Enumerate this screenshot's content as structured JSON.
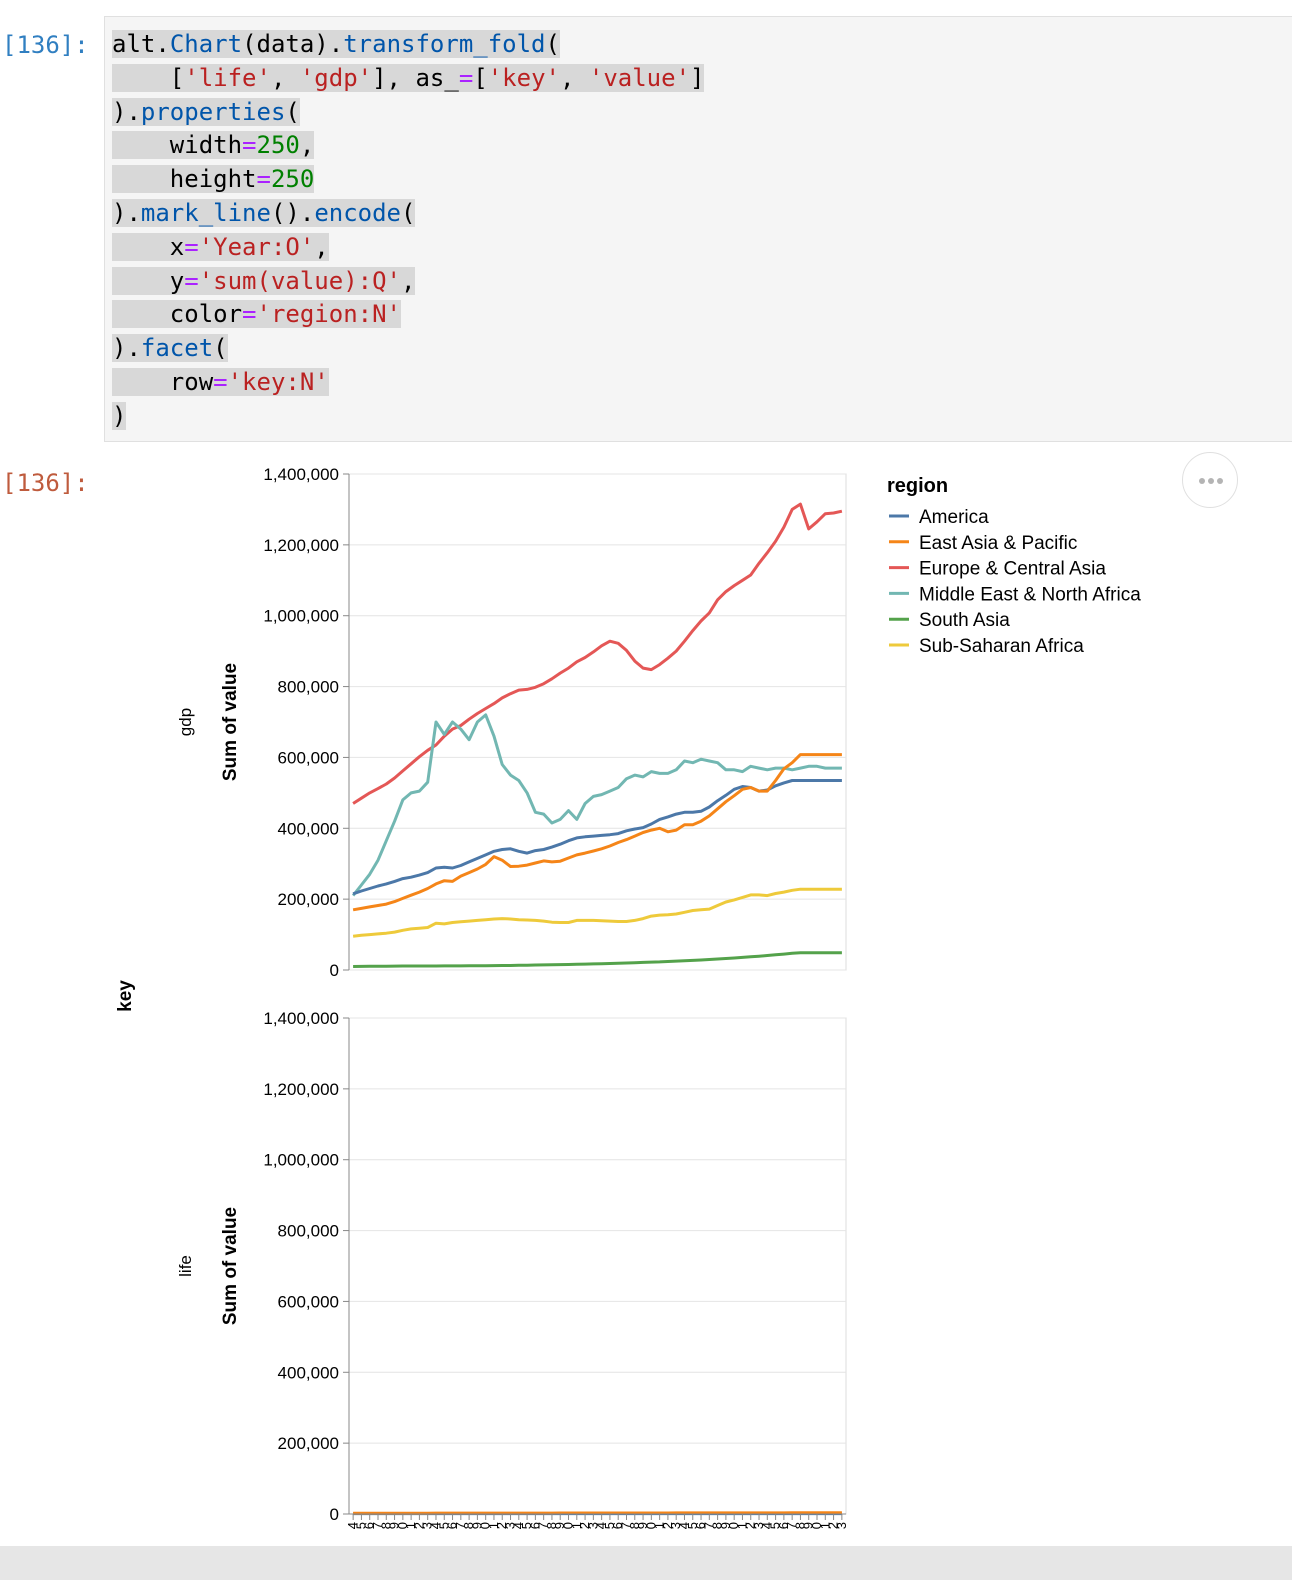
{
  "notebook": {
    "input_prompt": "[136]:",
    "output_prompt": "[136]:",
    "code_lines": [
      [
        {
          "t": "alt",
          "c": "k-obj"
        },
        {
          "t": ".",
          "c": "k-obj"
        },
        {
          "t": "Chart",
          "c": "k-attr"
        },
        {
          "t": "(data).",
          "c": "k-obj"
        },
        {
          "t": "transform_fold",
          "c": "k-attr"
        },
        {
          "t": "(",
          "c": "k-obj"
        }
      ],
      [
        {
          "t": "    [",
          "c": "k-obj"
        },
        {
          "t": "'life'",
          "c": "k-str"
        },
        {
          "t": ", ",
          "c": "k-obj"
        },
        {
          "t": "'gdp'",
          "c": "k-str"
        },
        {
          "t": "], as_",
          "c": "k-obj"
        },
        {
          "t": "=",
          "c": "k-op"
        },
        {
          "t": "[",
          "c": "k-obj"
        },
        {
          "t": "'key'",
          "c": "k-str"
        },
        {
          "t": ", ",
          "c": "k-obj"
        },
        {
          "t": "'value'",
          "c": "k-str"
        },
        {
          "t": "]",
          "c": "k-obj"
        }
      ],
      [
        {
          "t": ").",
          "c": "k-obj"
        },
        {
          "t": "properties",
          "c": "k-attr"
        },
        {
          "t": "(",
          "c": "k-obj"
        }
      ],
      [
        {
          "t": "    width",
          "c": "k-obj"
        },
        {
          "t": "=",
          "c": "k-op"
        },
        {
          "t": "250",
          "c": "k-num"
        },
        {
          "t": ",",
          "c": "k-obj"
        }
      ],
      [
        {
          "t": "    height",
          "c": "k-obj"
        },
        {
          "t": "=",
          "c": "k-op"
        },
        {
          "t": "250",
          "c": "k-num"
        }
      ],
      [
        {
          "t": ").",
          "c": "k-obj"
        },
        {
          "t": "mark_line",
          "c": "k-attr"
        },
        {
          "t": "().",
          "c": "k-obj"
        },
        {
          "t": "encode",
          "c": "k-attr"
        },
        {
          "t": "(",
          "c": "k-obj"
        }
      ],
      [
        {
          "t": "    x",
          "c": "k-obj"
        },
        {
          "t": "=",
          "c": "k-op"
        },
        {
          "t": "'Year:O'",
          "c": "k-str"
        },
        {
          "t": ",",
          "c": "k-obj"
        }
      ],
      [
        {
          "t": "    y",
          "c": "k-obj"
        },
        {
          "t": "=",
          "c": "k-op"
        },
        {
          "t": "'sum(value):Q'",
          "c": "k-str"
        },
        {
          "t": ",",
          "c": "k-obj"
        }
      ],
      [
        {
          "t": "    color",
          "c": "k-obj"
        },
        {
          "t": "=",
          "c": "k-op"
        },
        {
          "t": "'region:N'",
          "c": "k-str"
        }
      ],
      [
        {
          "t": ").",
          "c": "k-obj"
        },
        {
          "t": "facet",
          "c": "k-attr"
        },
        {
          "t": "(",
          "c": "k-obj"
        }
      ],
      [
        {
          "t": "    row",
          "c": "k-obj"
        },
        {
          "t": "=",
          "c": "k-op"
        },
        {
          "t": "'key:N'",
          "c": "k-str"
        }
      ],
      [
        {
          "t": ")",
          "c": "k-obj"
        }
      ]
    ]
  },
  "chart_data": {
    "type": "line",
    "facet_field": "key",
    "x_field": "Year",
    "ylabel": "Sum of value",
    "ylim": [
      0,
      1400000
    ],
    "y_ticks": [
      0,
      200000,
      400000,
      600000,
      800000,
      1000000,
      1200000,
      1400000
    ],
    "y_tick_labels": [
      "0",
      "200,000",
      "400,000",
      "600,000",
      "800,000",
      "1,000,000",
      "1,200,000",
      "1,400,000"
    ],
    "x_tick_labels": [
      "4",
      "5",
      "6",
      "7",
      "8",
      "9",
      "0",
      "1",
      "2",
      "3",
      "4",
      "5",
      "6",
      "7",
      "8",
      "9",
      "0",
      "1",
      "2",
      "3",
      "4",
      "5",
      "6",
      "7",
      "8",
      "9",
      "0",
      "1",
      "2",
      "3",
      "4",
      "5",
      "6",
      "7",
      "8",
      "9",
      "0",
      "1",
      "2",
      "3",
      "4",
      "5",
      "6",
      "7",
      "8",
      "9",
      "0",
      "1",
      "2",
      "3",
      "4",
      "5",
      "6",
      "7",
      "8",
      "9",
      "0",
      "1",
      "2",
      "3"
    ],
    "legend": {
      "title": "region",
      "position": "right"
    },
    "colors": {
      "America": "#4c78a8",
      "East Asia & Pacific": "#f58518",
      "Europe & Central Asia": "#e45756",
      "Middle East & North Africa": "#72b7b2",
      "South Asia": "#54a24b",
      "Sub-Saharan Africa": "#eeca3b"
    },
    "facets": [
      {
        "key": "gdp",
        "series": [
          {
            "name": "Europe & Central Asia",
            "values": [
              470000,
              485000,
              500000,
              512000,
              525000,
              542000,
              562000,
              582000,
              602000,
              620000,
              635000,
              660000,
              680000,
              690000,
              708000,
              724000,
              738000,
              752000,
              768000,
              780000,
              790000,
              792000,
              798000,
              808000,
              822000,
              838000,
              852000,
              870000,
              882000,
              898000,
              915000,
              928000,
              922000,
              902000,
              872000,
              852000,
              848000,
              862000,
              880000,
              900000,
              928000,
              958000,
              985000,
              1008000,
              1045000,
              1068000,
              1085000,
              1100000,
              1115000,
              1148000,
              1178000,
              1210000,
              1250000,
              1300000,
              1315000,
              1245000,
              1265000,
              1288000,
              1290000,
              1295000
            ]
          },
          {
            "name": "Middle East & North Africa",
            "values": [
              210000,
              240000,
              270000,
              310000,
              365000,
              420000,
              480000,
              500000,
              505000,
              530000,
              700000,
              665000,
              700000,
              680000,
              650000,
              700000,
              720000,
              660000,
              580000,
              550000,
              535000,
              500000,
              445000,
              440000,
              415000,
              425000,
              450000,
              425000,
              470000,
              490000,
              495000,
              505000,
              515000,
              540000,
              550000,
              545000,
              560000,
              555000,
              555000,
              565000,
              590000,
              585000,
              595000,
              590000,
              585000,
              565000,
              565000,
              560000,
              575000,
              570000,
              565000,
              570000,
              570000,
              565000,
              570000,
              575000,
              575000,
              570000,
              570000,
              570000
            ]
          },
          {
            "name": "America",
            "values": [
              215000,
              223000,
              230000,
              237000,
              243000,
              250000,
              258000,
              262000,
              268000,
              275000,
              288000,
              290000,
              288000,
              295000,
              305000,
              315000,
              325000,
              335000,
              340000,
              342000,
              335000,
              330000,
              337000,
              340000,
              347000,
              355000,
              365000,
              373000,
              376000,
              378000,
              380000,
              382000,
              385000,
              393000,
              398000,
              402000,
              412000,
              425000,
              432000,
              440000,
              445000,
              445000,
              448000,
              460000,
              478000,
              493000,
              510000,
              518000,
              515000,
              505000,
              508000,
              520000,
              528000,
              535000,
              535000,
              535000,
              535000,
              535000,
              535000,
              535000
            ]
          },
          {
            "name": "East Asia & Pacific",
            "values": [
              170000,
              174000,
              178000,
              182000,
              186000,
              193000,
              202000,
              211000,
              220000,
              230000,
              243000,
              252000,
              250000,
              265000,
              275000,
              285000,
              298000,
              320000,
              310000,
              292000,
              293000,
              296000,
              302000,
              308000,
              305000,
              307000,
              316000,
              325000,
              330000,
              336000,
              342000,
              350000,
              360000,
              368000,
              378000,
              388000,
              395000,
              400000,
              390000,
              395000,
              410000,
              410000,
              420000,
              435000,
              455000,
              475000,
              492000,
              510000,
              515000,
              505000,
              505000,
              535000,
              568000,
              585000,
              608000,
              608000,
              608000,
              608000,
              608000,
              608000
            ]
          },
          {
            "name": "Sub-Saharan Africa",
            "values": [
              95000,
              98000,
              100000,
              102000,
              104000,
              107000,
              112000,
              116000,
              118000,
              120000,
              132000,
              130000,
              134000,
              136000,
              138000,
              140000,
              142000,
              144000,
              145000,
              144000,
              142000,
              141000,
              140000,
              138000,
              135000,
              134000,
              134000,
              140000,
              140000,
              140000,
              139000,
              138000,
              137000,
              137000,
              140000,
              145000,
              152000,
              155000,
              156000,
              158000,
              163000,
              168000,
              170000,
              172000,
              182000,
              192000,
              198000,
              205000,
              212000,
              212000,
              210000,
              216000,
              220000,
              225000,
              228000,
              228000,
              228000,
              228000,
              228000,
              228000
            ]
          },
          {
            "name": "South Asia",
            "values": [
              10000,
              10200,
              10400,
              10600,
              10800,
              11000,
              11200,
              11200,
              11200,
              11300,
              11400,
              11500,
              11600,
              11700,
              11800,
              12000,
              12200,
              12400,
              12600,
              12800,
              13200,
              13600,
              14000,
              14400,
              14800,
              15200,
              15600,
              16000,
              16600,
              17200,
              17800,
              18400,
              19000,
              19800,
              20600,
              21400,
              22200,
              23000,
              24000,
              25000,
              26000,
              27000,
              28200,
              29600,
              31000,
              32500,
              34000,
              35600,
              37200,
              39000,
              41000,
              43000,
              45000,
              47000,
              48500,
              48500,
              48500,
              48500,
              48500,
              48500
            ]
          }
        ]
      },
      {
        "key": "life",
        "series": [
          {
            "name": "America",
            "values": [
              1100,
              1102,
              1104,
              1106,
              1108,
              1110,
              1112,
              1114,
              1116,
              1118,
              1120,
              1122,
              1124,
              1126,
              1128,
              1130,
              1132,
              1134,
              1136,
              1138,
              1140,
              1142,
              1144,
              1146,
              1148,
              1150,
              1152,
              1154,
              1156,
              1158,
              1160,
              1162,
              1164,
              1166,
              1168,
              1170,
              1172,
              1174,
              1176,
              1178,
              1180,
              1182,
              1184,
              1186,
              1188,
              1190,
              1192,
              1194,
              1196,
              1198,
              1200,
              1202,
              1204,
              1206,
              1208,
              1210,
              1212,
              1214,
              1216,
              1218
            ]
          },
          {
            "name": "East Asia & Pacific",
            "values": [
              2200,
              2220,
              2240,
              2260,
              2280,
              2300,
              2320,
              2340,
              2360,
              2380,
              2400,
              2420,
              2440,
              2460,
              2480,
              2500,
              2520,
              2540,
              2560,
              2580,
              2600,
              2620,
              2640,
              2660,
              2680,
              2700,
              2720,
              2740,
              2760,
              2780,
              2800,
              2820,
              2840,
              2860,
              2880,
              2900,
              2920,
              2940,
              2960,
              2980,
              3000,
              3020,
              3040,
              3060,
              3080,
              3100,
              3120,
              3140,
              3160,
              3180,
              3200,
              3220,
              3240,
              3260,
              3280,
              3300,
              3320,
              3340,
              3360,
              3380
            ]
          }
        ]
      }
    ]
  }
}
